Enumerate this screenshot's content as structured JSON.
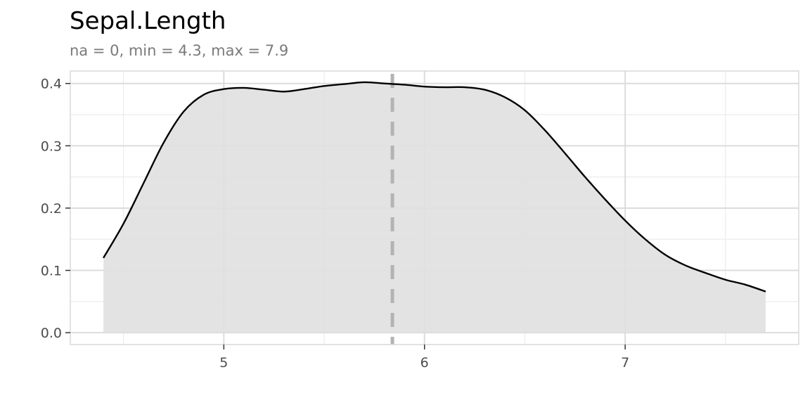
{
  "chart_data": {
    "type": "area",
    "title": "Sepal.Length",
    "subtitle": "na = 0, min = 4.3, max = 7.9",
    "xlabel": "",
    "ylabel": "",
    "xlim": [
      4.235,
      7.865
    ],
    "ylim": [
      -0.019,
      0.42
    ],
    "x_ticks": [
      5,
      6,
      7
    ],
    "x_tick_labels": [
      "5",
      "6",
      "7"
    ],
    "x_minor_ticks": [
      4.5,
      5.5,
      6.5,
      7.5
    ],
    "y_ticks": [
      0.0,
      0.1,
      0.2,
      0.3,
      0.4
    ],
    "y_tick_labels": [
      "0.0",
      "0.1",
      "0.2",
      "0.3",
      "0.4"
    ],
    "y_minor_ticks": [
      0.05,
      0.15,
      0.25,
      0.35
    ],
    "grid": true,
    "mean_line": 5.84,
    "series": [
      {
        "x": [
          4.4,
          4.5,
          4.6,
          4.7,
          4.8,
          4.9,
          5.0,
          5.1,
          5.2,
          5.3,
          5.4,
          5.5,
          5.6,
          5.7,
          5.8,
          5.9,
          6.0,
          6.1,
          6.2,
          6.3,
          6.4,
          6.5,
          6.6,
          6.7,
          6.8,
          6.9,
          7.0,
          7.1,
          7.2,
          7.3,
          7.4,
          7.5,
          7.6,
          7.7
        ],
        "y": [
          0.12,
          0.175,
          0.24,
          0.305,
          0.355,
          0.382,
          0.391,
          0.393,
          0.39,
          0.387,
          0.391,
          0.396,
          0.399,
          0.402,
          0.4,
          0.398,
          0.395,
          0.394,
          0.394,
          0.39,
          0.378,
          0.357,
          0.325,
          0.288,
          0.25,
          0.214,
          0.18,
          0.15,
          0.125,
          0.108,
          0.096,
          0.085,
          0.077,
          0.066
        ]
      }
    ],
    "colors": {
      "fill": "#e0e0e0",
      "line": "#000000",
      "mean_line": "#b3b3b3",
      "grid_major": "#dcdcdc",
      "grid_minor": "#ececec",
      "panel_border": "#d9d9d9"
    }
  }
}
